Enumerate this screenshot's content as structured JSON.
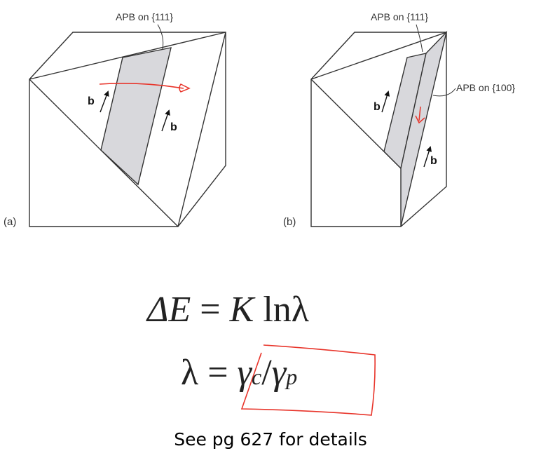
{
  "figure_a": {
    "panel_label": "(a)",
    "apb_label": "APB on {111}",
    "vector_left": "b",
    "vector_right": "b"
  },
  "figure_b": {
    "panel_label": "(b)",
    "apb_top_label": "APB on {111}",
    "apb_side_label": "APB on {100}",
    "vector_left": "b",
    "vector_right": "b"
  },
  "equations": {
    "eq1": {
      "lhs": "ΔE",
      "eq": "=",
      "rhs_k": "K",
      "rhs_ln": "ln",
      "rhs_lambda": "λ"
    },
    "eq2": {
      "lhs": "λ",
      "eq": "=",
      "gamma1": "γ",
      "sub1": "c",
      "slash": "/",
      "gamma2": "γ",
      "sub2": "p"
    }
  },
  "footnote": "See pg 627 for details",
  "colors": {
    "line": "#333333",
    "shade": "#d8d8dc",
    "annotation": "#e8342a"
  }
}
